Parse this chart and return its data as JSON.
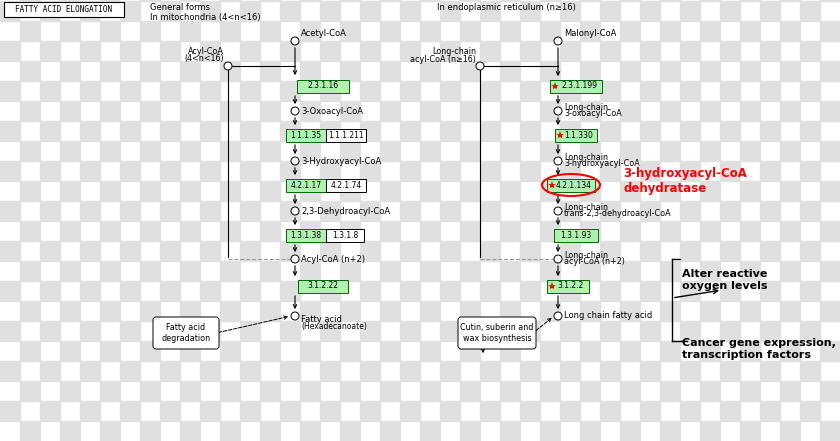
{
  "figsize": [
    8.4,
    4.41
  ],
  "dpi": 100,
  "bg_color": "#ffffff",
  "title_text": "FATTY ACID ELONGATION",
  "section1_header": "General forms\nIn mitochondria (4<n<16)",
  "section2_header": "In endoplasmic reticulum (n≥16)",
  "green_box_color": "#b0f0b0",
  "green_box_edge": "#006600",
  "node_color": "#ffffff",
  "node_edge": "#000000",
  "arrow_color": "#000000",
  "dashed_color": "#999999",
  "highlight_text": "3-hydroxyacyl-CoA\ndehydratase",
  "anno1": "Alter reactive\noxygen levels",
  "anno2": "Cancer gene expression,\ntranscription factors",
  "checkerboard_color": "#e0e0e0",
  "tile": 20
}
